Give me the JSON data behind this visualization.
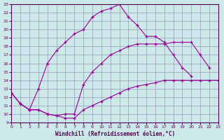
{
  "xlabel": "Windchill (Refroidissement éolien,°C)",
  "background_color": "#cce8e8",
  "line_color": "#990099",
  "grid_color": "#9999bb",
  "xlim": [
    0,
    23
  ],
  "ylim": [
    9,
    23
  ],
  "yticks": [
    9,
    10,
    11,
    12,
    13,
    14,
    15,
    16,
    17,
    18,
    19,
    20,
    21,
    22,
    23
  ],
  "xticks": [
    0,
    1,
    2,
    3,
    4,
    5,
    6,
    7,
    8,
    9,
    10,
    11,
    12,
    13,
    14,
    15,
    16,
    17,
    18,
    19,
    20,
    21,
    22,
    23
  ],
  "curves": [
    {
      "x": [
        0,
        1,
        2,
        3,
        4,
        5,
        6,
        7,
        8,
        9,
        10,
        11,
        12,
        13,
        14,
        15,
        16,
        17,
        18,
        19,
        20,
        21,
        22,
        23
      ],
      "y": [
        12.5,
        11.2,
        10.5,
        13.0,
        16.0,
        17.5,
        18.5,
        19.5,
        20.0,
        21.5,
        22.2,
        22.5,
        23.0,
        21.5,
        20.5,
        19.2,
        19.2,
        18.5,
        17.0,
        15.5,
        14.5,
        null,
        null,
        null
      ]
    },
    {
      "x": [
        0,
        1,
        2,
        3,
        4,
        5,
        6,
        7,
        8,
        9,
        10,
        11,
        12,
        13,
        14,
        15,
        16,
        17,
        18,
        19,
        20,
        21,
        22,
        23
      ],
      "y": [
        12.5,
        11.2,
        10.5,
        10.5,
        10.0,
        9.8,
        10.0,
        10.0,
        13.5,
        15.0,
        16.0,
        17.0,
        17.5,
        18.0,
        18.3,
        18.3,
        18.3,
        18.3,
        18.5,
        18.5,
        18.5,
        17.0,
        15.5,
        null
      ]
    },
    {
      "x": [
        0,
        1,
        2,
        3,
        4,
        5,
        6,
        7,
        8,
        9,
        10,
        11,
        12,
        13,
        14,
        15,
        16,
        17,
        18,
        19,
        20,
        21,
        22,
        23
      ],
      "y": [
        12.5,
        11.2,
        10.5,
        10.5,
        10.0,
        9.8,
        9.5,
        9.5,
        10.5,
        11.0,
        11.5,
        12.0,
        12.5,
        13.0,
        13.3,
        13.5,
        13.7,
        14.0,
        14.0,
        14.0,
        14.0,
        14.0,
        14.0,
        14.0
      ]
    }
  ]
}
